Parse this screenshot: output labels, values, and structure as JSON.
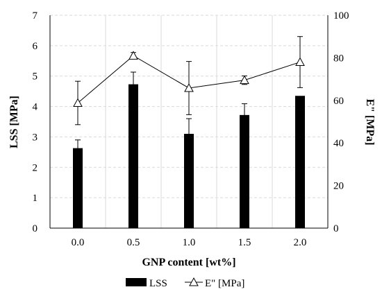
{
  "chart_data": {
    "type": "bar",
    "categories": [
      "0.0",
      "0.5",
      "1.0",
      "1.5",
      "2.0"
    ],
    "xlabel": "GNP content [wt%]",
    "ylabel": "LSS [MPa]",
    "y2label": "E\" [MPa]",
    "ylim": [
      0,
      7
    ],
    "y2lim": [
      0,
      100
    ],
    "yticks": [
      "0",
      "1",
      "2",
      "3",
      "4",
      "5",
      "6",
      "7"
    ],
    "y2ticks": [
      "0",
      "20",
      "40",
      "60",
      "80",
      "100"
    ],
    "grid": true,
    "legend_position": "bottom",
    "series": [
      {
        "name": "LSS",
        "type": "bar",
        "axis": "left",
        "color": "#000000",
        "values": [
          2.63,
          4.73,
          3.1,
          3.72,
          4.35
        ],
        "error": [
          0.27,
          0.4,
          0.5,
          0.37,
          0.0
        ]
      },
      {
        "name": "E\" [MPa]",
        "type": "line",
        "axis": "right",
        "marker": "open-triangle",
        "color": "#000000",
        "values": [
          58.8,
          81.0,
          65.8,
          69.5,
          78.0
        ],
        "error": [
          10.2,
          1.5,
          12.5,
          2.0,
          12.0
        ]
      }
    ]
  }
}
